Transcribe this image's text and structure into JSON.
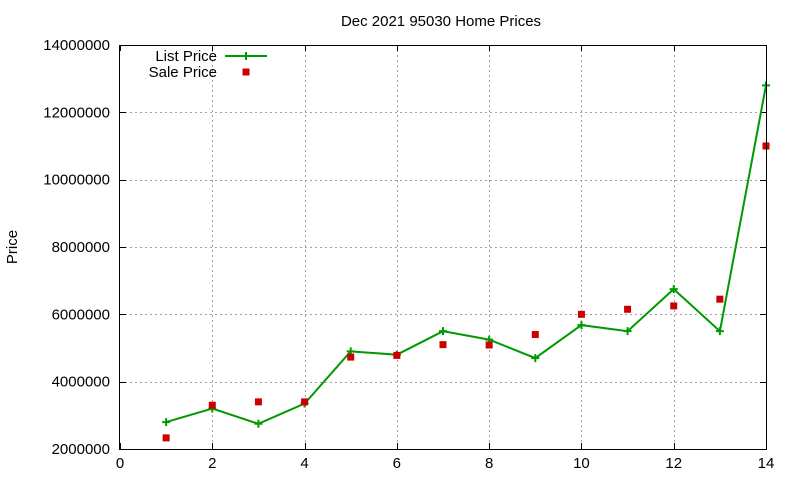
{
  "chart_data": {
    "type": "line",
    "title": "Dec 2021 95030 Home Prices",
    "xlabel": "",
    "ylabel": "Price",
    "xlim": [
      0,
      14
    ],
    "ylim": [
      2000000,
      14000000
    ],
    "x_ticks": [
      "0",
      "2",
      "4",
      "6",
      "8",
      "10",
      "12",
      "14"
    ],
    "y_ticks": [
      "2000000",
      "4000000",
      "6000000",
      "8000000",
      "10000000",
      "12000000",
      "14000000"
    ],
    "grid": true,
    "legend_position": "top-left",
    "series": [
      {
        "name": "List Price",
        "style": "linespoints",
        "color": "#009900",
        "x": [
          1,
          2,
          3,
          4,
          5,
          6,
          7,
          8,
          9,
          10,
          11,
          12,
          13,
          14
        ],
        "y": [
          2800000,
          3200000,
          2750000,
          3350000,
          4900000,
          4800000,
          5500000,
          5250000,
          4700000,
          5680000,
          5500000,
          6750000,
          5500000,
          12800000
        ]
      },
      {
        "name": "Sale Price",
        "style": "points",
        "color": "#cc0000",
        "x": [
          1,
          2,
          3,
          4,
          5,
          6,
          7,
          8,
          9,
          10,
          11,
          12,
          13,
          14
        ],
        "y": [
          2330000,
          3300000,
          3400000,
          3400000,
          4730000,
          4780000,
          5100000,
          5090000,
          5400000,
          6000000,
          6150000,
          6250000,
          6450000,
          11000000
        ]
      }
    ]
  }
}
